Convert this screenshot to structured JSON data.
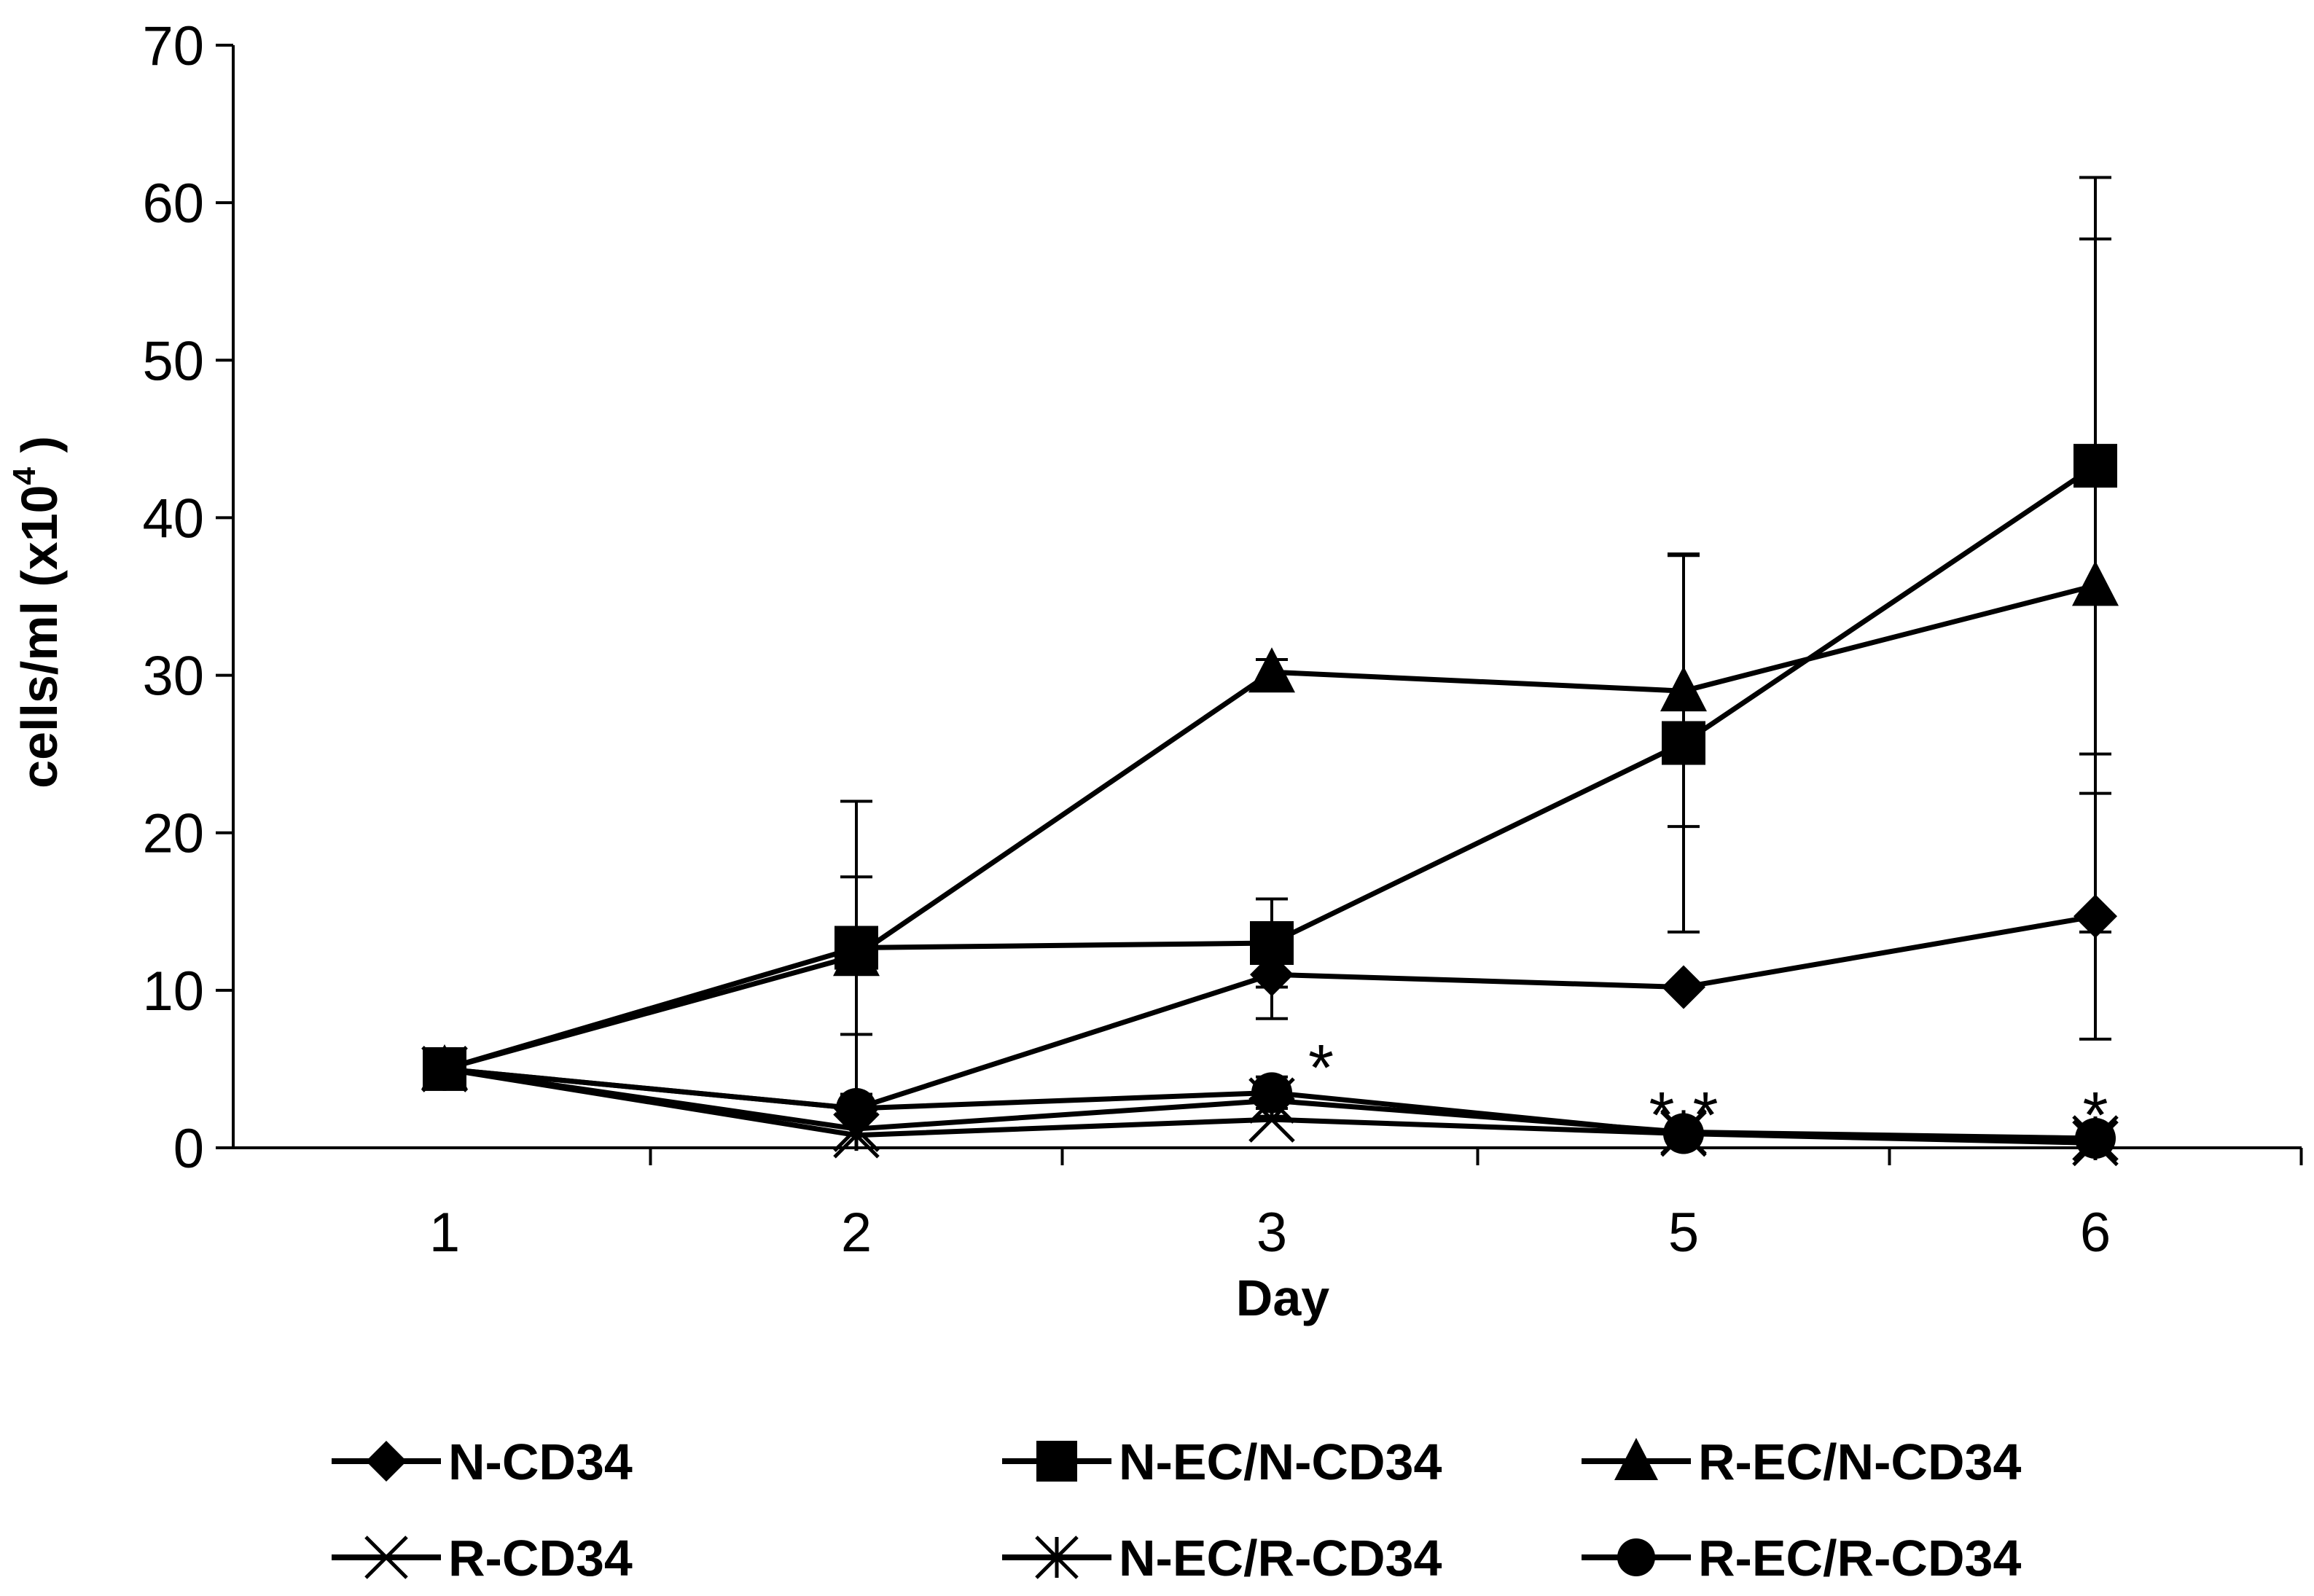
{
  "chart_data": {
    "type": "line",
    "title": "",
    "xlabel": "Day",
    "ylabel_main": "cells/ml (x10",
    "ylabel_sup": "4",
    "ylabel_end": " )",
    "categories": [
      "1",
      "2",
      "3",
      "5",
      "6"
    ],
    "ylim": [
      0,
      70
    ],
    "yticks": [
      "0",
      "10",
      "20",
      "30",
      "40",
      "50",
      "60",
      "70"
    ],
    "grid": false,
    "legend_position": "bottom",
    "series": [
      {
        "name": "N-CD34",
        "marker": "diamond",
        "values": [
          5,
          2.5,
          11,
          10.2,
          14.7
        ],
        "err": [
          0,
          0,
          2.8,
          0,
          7.8
        ]
      },
      {
        "name": "N-EC/N-CD34",
        "marker": "square",
        "values": [
          5,
          12.7,
          13,
          25.7,
          43.3
        ],
        "err": [
          0,
          9.3,
          2.8,
          12,
          18.3
        ]
      },
      {
        "name": "R-EC/N-CD34",
        "marker": "triangle",
        "values": [
          5,
          12.2,
          30.2,
          29,
          35.7
        ],
        "err": [
          0,
          5,
          0.8,
          8.6,
          22
        ]
      },
      {
        "name": "R-CD34",
        "marker": "x",
        "values": [
          5,
          0.8,
          1.8,
          0.9,
          0.3
        ],
        "err": [
          0,
          0,
          0,
          0,
          0
        ]
      },
      {
        "name": "N-EC/R-CD34",
        "marker": "asterisk",
        "values": [
          5,
          1.2,
          3.0,
          1.0,
          0.6
        ],
        "err": [
          0,
          0,
          1.0,
          0,
          0
        ]
      },
      {
        "name": "R-EC/R-CD34",
        "marker": "circle",
        "values": [
          5,
          2.5,
          3.5,
          0.9,
          0.6
        ],
        "err": [
          0,
          0,
          1.0,
          0,
          0
        ]
      }
    ],
    "annotations": [
      {
        "text": "*",
        "category": "3",
        "y": 5.5,
        "offset": "right"
      },
      {
        "text": "* *",
        "category": "5",
        "y": 2.5,
        "offset": "center"
      },
      {
        "text": "*",
        "category": "6",
        "y": 2.5,
        "offset": "center"
      }
    ]
  }
}
